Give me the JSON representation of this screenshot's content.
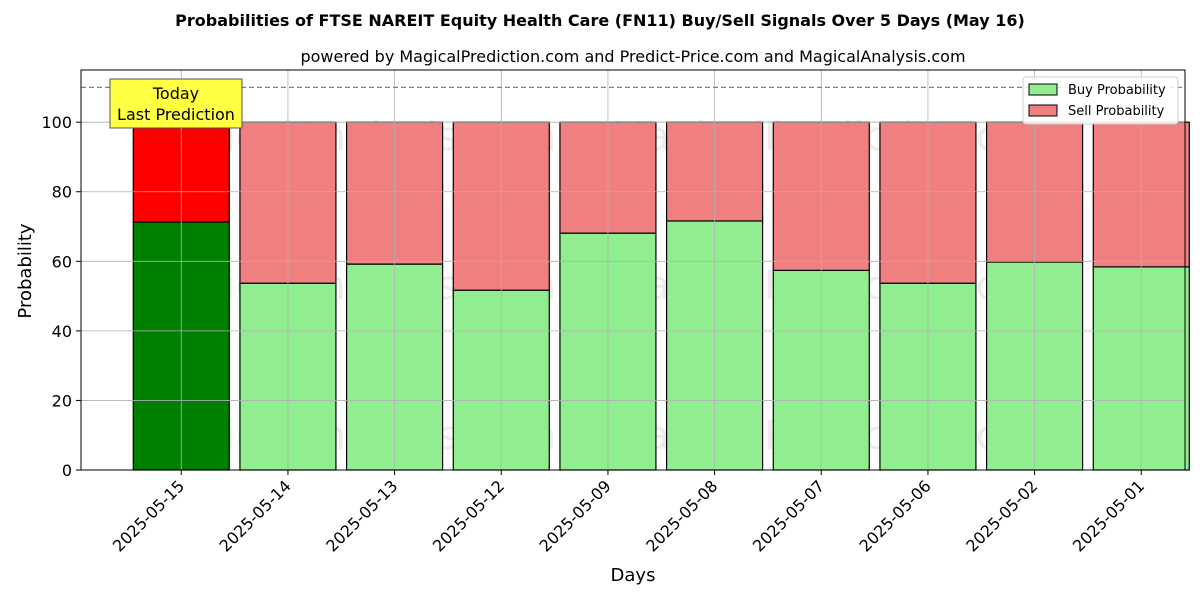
{
  "chart_data": {
    "type": "bar",
    "stacked": true,
    "title": "Probabilities of FTSE NAREIT Equity Health Care (FN11) Buy/Sell Signals Over 5 Days (May 16)",
    "subtitle": "powered by MagicalPrediction.com and Predict-Price.com and MagicalAnalysis.com",
    "xlabel": "Days",
    "ylabel": "Probability",
    "ylim": [
      0,
      115
    ],
    "yticks": [
      0,
      20,
      40,
      60,
      80,
      100
    ],
    "grid": true,
    "legend_position": "top-right",
    "categories": [
      "2025-05-15",
      "2025-05-14",
      "2025-05-13",
      "2025-05-12",
      "2025-05-09",
      "2025-05-08",
      "2025-05-07",
      "2025-05-06",
      "2025-05-02",
      "2025-05-01"
    ],
    "series": [
      {
        "name": "Buy Probability",
        "color": "#90ee90",
        "highlight_color": "#008000",
        "values": [
          71.3,
          53.7,
          59.2,
          51.7,
          68.1,
          71.6,
          57.4,
          53.7,
          59.8,
          58.4
        ]
      },
      {
        "name": "Sell Probability",
        "color": "#f08080",
        "highlight_color": "#ff0000",
        "values": [
          28.7,
          46.3,
          40.8,
          48.3,
          31.9,
          28.4,
          42.6,
          46.3,
          40.2,
          41.6
        ]
      }
    ],
    "highlight_index": 0,
    "reference_line": {
      "y": 110,
      "style": "dashed",
      "color": "#808080"
    },
    "annotation": {
      "lines": [
        "Today",
        "Last Prediction"
      ],
      "background": "#ffff44"
    },
    "watermarks": [
      "MagicalAnalysis.com",
      "MagicalPrediction.com"
    ]
  }
}
